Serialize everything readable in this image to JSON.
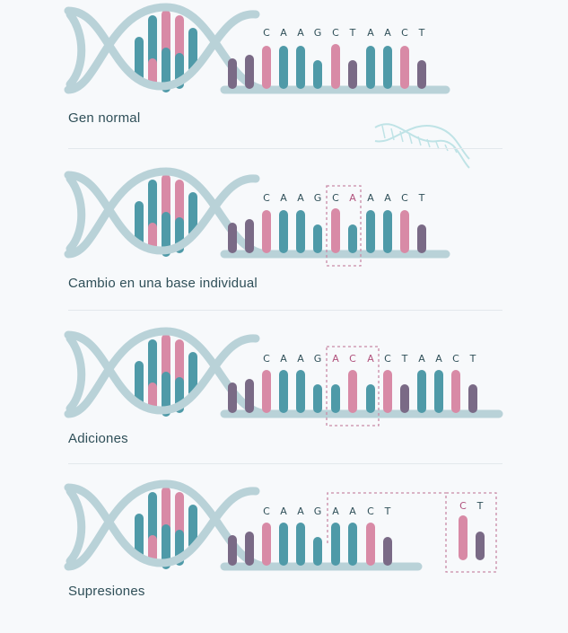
{
  "colors": {
    "backbone": "#b9d2d8",
    "teal": "#4f9aa8",
    "pink": "#d88aa6",
    "purple": "#7a6a86",
    "tealDark": "#2f8f98",
    "letters": "#2f4f58",
    "highlight": "#b0517c",
    "dash": "#c98aa6"
  },
  "panels": [
    {
      "caption": "Gen normal",
      "letters": [
        "C",
        "A",
        "A",
        "G",
        "C",
        "T",
        "A",
        "A",
        "C",
        "T"
      ],
      "highlight_letters": []
    },
    {
      "caption": "Cambio en una base individual",
      "letters": [
        "C",
        "A",
        "A",
        "G",
        "C",
        "A",
        "A",
        "A",
        "C",
        "T"
      ],
      "highlight_letters": [
        5
      ]
    },
    {
      "caption": "Adiciones",
      "letters": [
        "C",
        "A",
        "A",
        "G",
        "A",
        "C",
        "A",
        "C",
        "T",
        "A",
        "A",
        "C",
        "T"
      ],
      "highlight_letters": [
        4,
        5,
        6
      ]
    },
    {
      "caption": "Supresiones",
      "letters": [
        "C",
        "A",
        "A",
        "G",
        "A",
        "A",
        "C",
        "T"
      ],
      "highlight_letters": [],
      "removed_letters": [
        "C",
        "T"
      ]
    }
  ]
}
